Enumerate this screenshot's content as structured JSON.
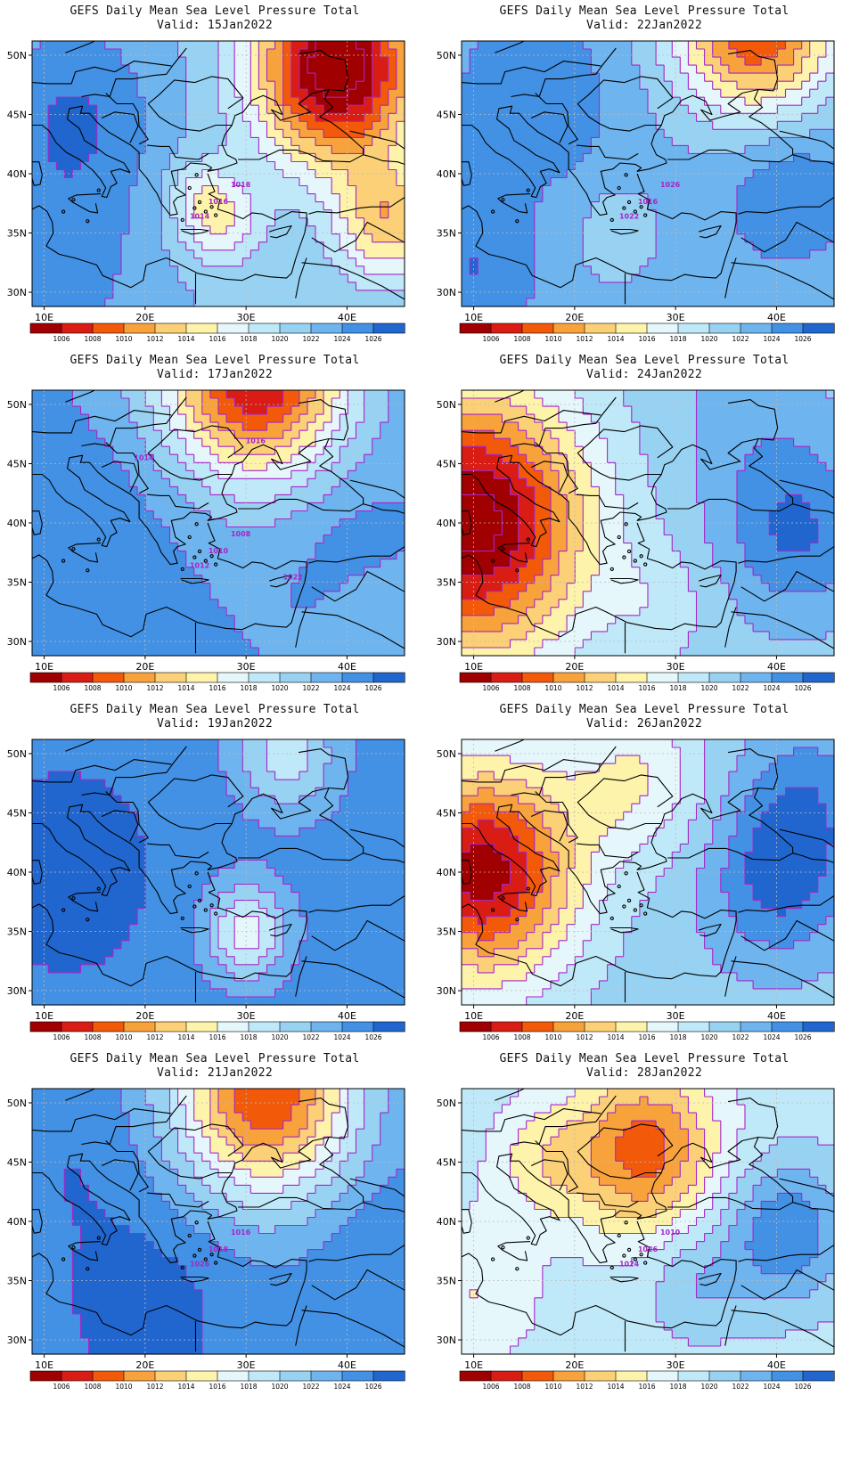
{
  "figure": {
    "panel_title": "GEFS Daily Mean Sea Level Pressure Total",
    "valid_prefix": "Valid:",
    "lat_ticks": [
      "50N",
      "45N",
      "40N",
      "35N",
      "30N"
    ],
    "lon_ticks": [
      "10E",
      "20E",
      "30E",
      "40E"
    ],
    "colorbar_levels": [
      "1006",
      "1008",
      "1010",
      "1012",
      "1014",
      "1016",
      "1018",
      "1020",
      "1022",
      "1024",
      "1026"
    ],
    "colorbar_colors": [
      "#a00000",
      "#d91c14",
      "#f25a0a",
      "#f8a23c",
      "#fbd077",
      "#fdf3aa",
      "#e5f7fb",
      "#bfe9f8",
      "#98d2f3",
      "#6eb4ee",
      "#4391e4",
      "#2166cf"
    ],
    "contour_color": "#a626c8",
    "coast_color": "#000000"
  },
  "panels": [
    {
      "date": "15Jan2022",
      "labels": [
        "1018",
        "1016",
        "1014"
      ]
    },
    {
      "date": "22Jan2022",
      "labels": [
        "1026",
        "1016",
        "1022"
      ]
    },
    {
      "date": "17Jan2022",
      "labels": [
        "1008",
        "1010",
        "1012",
        "1014",
        "1016",
        "1022"
      ]
    },
    {
      "date": "24Jan2022",
      "labels": []
    },
    {
      "date": "19Jan2022",
      "labels": []
    },
    {
      "date": "26Jan2022",
      "labels": []
    },
    {
      "date": "21Jan2022",
      "labels": [
        "1016",
        "1018",
        "1026"
      ]
    },
    {
      "date": "28Jan2022",
      "labels": [
        "1010",
        "1026",
        "1024"
      ]
    }
  ]
}
